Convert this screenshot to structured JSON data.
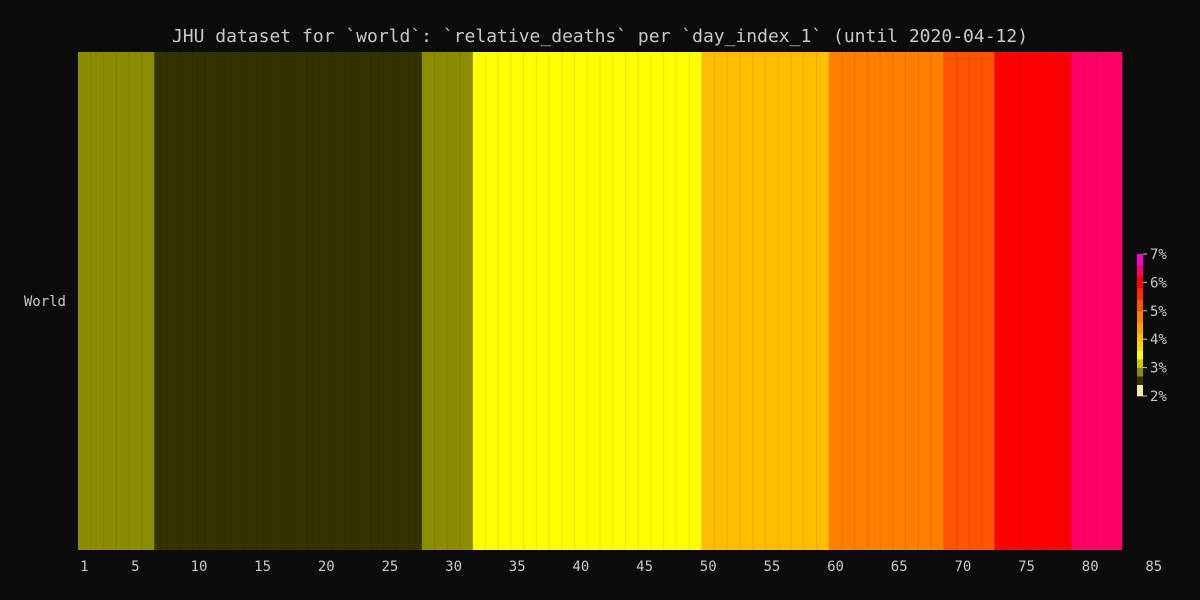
{
  "chart_data": {
    "type": "heatmap",
    "title": "JHU dataset for `world`: `relative_deaths` per `day_index_1` (until 2020-04-12)",
    "xlabel": "",
    "ylabel": "",
    "rows": [
      "World"
    ],
    "x_range": [
      1,
      83
    ],
    "x_ticks": [
      1,
      5,
      10,
      15,
      20,
      25,
      30,
      35,
      40,
      45,
      50,
      55,
      60,
      65,
      70,
      75,
      80,
      85
    ],
    "x_tick_labels": [
      "1",
      "5",
      "10",
      "15",
      "20",
      "25",
      "30",
      "35",
      "40",
      "45",
      "50",
      "55",
      "60",
      "65",
      "70",
      "75",
      "80",
      "85"
    ],
    "bin_edges": [
      2.0,
      2.4,
      2.7,
      3.0,
      3.3,
      3.6,
      3.9,
      4.2,
      4.6,
      5.0,
      5.4,
      5.8,
      6.2,
      6.6,
      7.0
    ],
    "bin_colors": [
      "#f5f0a0",
      "#333300",
      "#8c8c00",
      "#c8c800",
      "#ffff00",
      "#ffd700",
      "#ffbf00",
      "#ff9f00",
      "#ff7f00",
      "#ff5500",
      "#ff2a00",
      "#ff0000",
      "#ff0066",
      "#ff00cc"
    ],
    "legend_ticks": [
      2,
      3,
      4,
      5,
      6,
      7
    ],
    "legend_tick_labels": [
      "2%",
      "3%",
      "4%",
      "5%",
      "6%",
      "7%"
    ],
    "cells": [
      {
        "x": 1,
        "value": 2.85
      },
      {
        "x": 2,
        "value": 2.85
      },
      {
        "x": 3,
        "value": 2.85
      },
      {
        "x": 4,
        "value": 2.85
      },
      {
        "x": 5,
        "value": 2.85
      },
      {
        "x": 6,
        "value": 2.85
      },
      {
        "x": 7,
        "value": 2.55
      },
      {
        "x": 8,
        "value": 2.55
      },
      {
        "x": 9,
        "value": 2.55
      },
      {
        "x": 10,
        "value": 2.55
      },
      {
        "x": 11,
        "value": 2.55
      },
      {
        "x": 12,
        "value": 2.55
      },
      {
        "x": 13,
        "value": 2.55
      },
      {
        "x": 14,
        "value": 2.55
      },
      {
        "x": 15,
        "value": 2.55
      },
      {
        "x": 16,
        "value": 2.55
      },
      {
        "x": 17,
        "value": 2.55
      },
      {
        "x": 18,
        "value": 2.55
      },
      {
        "x": 19,
        "value": 2.55
      },
      {
        "x": 20,
        "value": 2.55
      },
      {
        "x": 21,
        "value": 2.55
      },
      {
        "x": 22,
        "value": 2.55
      },
      {
        "x": 23,
        "value": 2.55
      },
      {
        "x": 24,
        "value": 2.55
      },
      {
        "x": 25,
        "value": 2.55
      },
      {
        "x": 26,
        "value": 2.55
      },
      {
        "x": 27,
        "value": 2.55
      },
      {
        "x": 28,
        "value": 2.85
      },
      {
        "x": 29,
        "value": 2.85
      },
      {
        "x": 30,
        "value": 2.85
      },
      {
        "x": 31,
        "value": 2.85
      },
      {
        "x": 32,
        "value": 3.45
      },
      {
        "x": 33,
        "value": 3.45
      },
      {
        "x": 34,
        "value": 3.45
      },
      {
        "x": 35,
        "value": 3.45
      },
      {
        "x": 36,
        "value": 3.45
      },
      {
        "x": 37,
        "value": 3.45
      },
      {
        "x": 38,
        "value": 3.45
      },
      {
        "x": 39,
        "value": 3.45
      },
      {
        "x": 40,
        "value": 3.45
      },
      {
        "x": 41,
        "value": 3.45
      },
      {
        "x": 42,
        "value": 3.45
      },
      {
        "x": 43,
        "value": 3.45
      },
      {
        "x": 44,
        "value": 3.45
      },
      {
        "x": 45,
        "value": 3.45
      },
      {
        "x": 46,
        "value": 3.45
      },
      {
        "x": 47,
        "value": 3.45
      },
      {
        "x": 48,
        "value": 3.45
      },
      {
        "x": 49,
        "value": 3.45
      },
      {
        "x": 50,
        "value": 4.0
      },
      {
        "x": 51,
        "value": 4.0
      },
      {
        "x": 52,
        "value": 4.0
      },
      {
        "x": 53,
        "value": 4.0
      },
      {
        "x": 54,
        "value": 4.0
      },
      {
        "x": 55,
        "value": 4.0
      },
      {
        "x": 56,
        "value": 4.0
      },
      {
        "x": 57,
        "value": 4.0
      },
      {
        "x": 58,
        "value": 4.0
      },
      {
        "x": 59,
        "value": 4.0
      },
      {
        "x": 60,
        "value": 4.8
      },
      {
        "x": 61,
        "value": 4.8
      },
      {
        "x": 62,
        "value": 4.8
      },
      {
        "x": 63,
        "value": 4.8
      },
      {
        "x": 64,
        "value": 4.8
      },
      {
        "x": 65,
        "value": 4.8
      },
      {
        "x": 66,
        "value": 4.8
      },
      {
        "x": 67,
        "value": 4.8
      },
      {
        "x": 68,
        "value": 4.8
      },
      {
        "x": 69,
        "value": 5.2
      },
      {
        "x": 70,
        "value": 5.2
      },
      {
        "x": 71,
        "value": 5.2
      },
      {
        "x": 72,
        "value": 5.2
      },
      {
        "x": 73,
        "value": 6.0
      },
      {
        "x": 74,
        "value": 6.0
      },
      {
        "x": 75,
        "value": 6.0
      },
      {
        "x": 76,
        "value": 6.0
      },
      {
        "x": 77,
        "value": 6.0
      },
      {
        "x": 78,
        "value": 6.0
      },
      {
        "x": 79,
        "value": 6.4
      },
      {
        "x": 80,
        "value": 6.4
      },
      {
        "x": 81,
        "value": 6.4
      },
      {
        "x": 82,
        "value": 6.4
      }
    ],
    "grid": false,
    "legend": "right"
  }
}
